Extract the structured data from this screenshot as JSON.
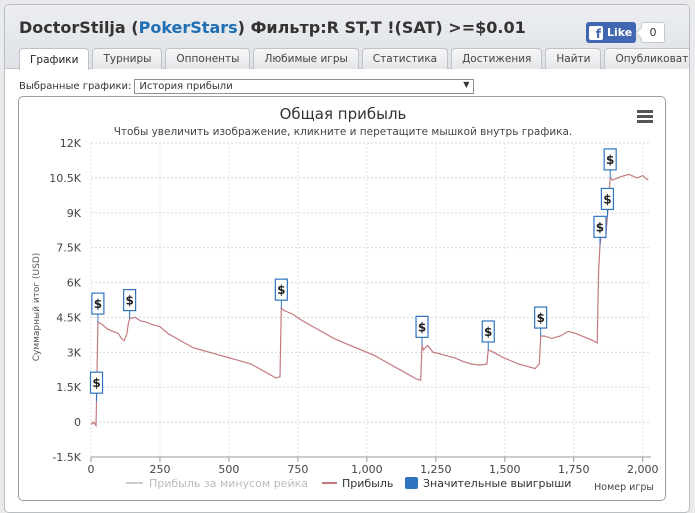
{
  "window": {
    "player": "DoctorStilja",
    "site": "PokerStars",
    "filter": "Фильтр:R ST,T !(SAT) >=$0.01",
    "fb_like": "Like",
    "fb_count": "0"
  },
  "tabs": [
    {
      "label": "Графики",
      "active": true
    },
    {
      "label": "Турниры",
      "active": false
    },
    {
      "label": "Оппоненты",
      "active": false
    },
    {
      "label": "Любимые игры",
      "active": false
    },
    {
      "label": "Статистика",
      "active": false
    },
    {
      "label": "Достижения",
      "active": false
    },
    {
      "label": "Найти",
      "active": false
    },
    {
      "label": "Опубликовать",
      "active": false
    }
  ],
  "selector": {
    "label": "Выбранные графики:",
    "value": "История прибыли"
  },
  "chart_data": {
    "type": "line",
    "title": "Общая прибыль",
    "subtitle": "Чтобы увеличить изображение, кликните и перетащите мышкой внутрь графика.",
    "ylabel": "Суммарный итог (USD)",
    "xlabel": "Номер игры",
    "xlim": [
      0,
      2030
    ],
    "ylim": [
      -1500,
      12000
    ],
    "x_ticks": [
      0,
      250,
      500,
      750,
      1000,
      1250,
      1500,
      1750,
      2000
    ],
    "x_tick_labels": [
      "0",
      "250",
      "500",
      "750",
      "1,000",
      "1,250",
      "1,500",
      "1,750",
      "2,000"
    ],
    "y_ticks": [
      -1500,
      0,
      1500,
      3000,
      4500,
      6000,
      7500,
      9000,
      10500,
      12000
    ],
    "y_tick_labels": [
      "-1.5K",
      "0",
      "1.5K",
      "3K",
      "4.5K",
      "6K",
      "7.5K",
      "9K",
      "10.5K",
      "12K"
    ],
    "grid": true,
    "legend_position": "bottom",
    "colors": {
      "profit": "#c47a7f",
      "rake_line": "#cccccc",
      "markers": "#2f74c0"
    },
    "series": [
      {
        "name": "Прибыль за минусом рейка",
        "hidden": true,
        "points": []
      },
      {
        "name": "Прибыль",
        "points": [
          [
            0,
            -100
          ],
          [
            10,
            0
          ],
          [
            18,
            -150
          ],
          [
            20,
            900
          ],
          [
            25,
            4300
          ],
          [
            40,
            4200
          ],
          [
            60,
            4000
          ],
          [
            80,
            3900
          ],
          [
            100,
            3800
          ],
          [
            110,
            3600
          ],
          [
            120,
            3500
          ],
          [
            130,
            3800
          ],
          [
            135,
            4200
          ],
          [
            140,
            4450
          ],
          [
            160,
            4500
          ],
          [
            180,
            4350
          ],
          [
            200,
            4300
          ],
          [
            220,
            4200
          ],
          [
            250,
            4100
          ],
          [
            280,
            3800
          ],
          [
            310,
            3600
          ],
          [
            340,
            3400
          ],
          [
            370,
            3200
          ],
          [
            400,
            3100
          ],
          [
            430,
            3000
          ],
          [
            460,
            2900
          ],
          [
            490,
            2800
          ],
          [
            520,
            2700
          ],
          [
            550,
            2600
          ],
          [
            580,
            2500
          ],
          [
            610,
            2300
          ],
          [
            640,
            2100
          ],
          [
            670,
            1900
          ],
          [
            685,
            1950
          ],
          [
            690,
            4900
          ],
          [
            700,
            4800
          ],
          [
            730,
            4650
          ],
          [
            760,
            4400
          ],
          [
            790,
            4200
          ],
          [
            820,
            4000
          ],
          [
            850,
            3800
          ],
          [
            880,
            3600
          ],
          [
            910,
            3450
          ],
          [
            940,
            3300
          ],
          [
            970,
            3150
          ],
          [
            1000,
            3000
          ],
          [
            1030,
            2850
          ],
          [
            1060,
            2650
          ],
          [
            1090,
            2450
          ],
          [
            1120,
            2250
          ],
          [
            1150,
            2050
          ],
          [
            1180,
            1850
          ],
          [
            1195,
            1800
          ],
          [
            1200,
            3300
          ],
          [
            1205,
            3100
          ],
          [
            1220,
            3300
          ],
          [
            1240,
            3000
          ],
          [
            1260,
            2950
          ],
          [
            1290,
            2850
          ],
          [
            1320,
            2750
          ],
          [
            1350,
            2600
          ],
          [
            1380,
            2500
          ],
          [
            1410,
            2450
          ],
          [
            1435,
            2500
          ],
          [
            1440,
            3100
          ],
          [
            1460,
            3000
          ],
          [
            1490,
            2800
          ],
          [
            1520,
            2650
          ],
          [
            1550,
            2500
          ],
          [
            1580,
            2400
          ],
          [
            1610,
            2300
          ],
          [
            1625,
            2500
          ],
          [
            1630,
            3700
          ],
          [
            1645,
            3700
          ],
          [
            1670,
            3600
          ],
          [
            1700,
            3700
          ],
          [
            1730,
            3900
          ],
          [
            1760,
            3800
          ],
          [
            1790,
            3650
          ],
          [
            1820,
            3500
          ],
          [
            1835,
            3400
          ],
          [
            1840,
            6500
          ],
          [
            1845,
            7600
          ],
          [
            1855,
            8700
          ],
          [
            1865,
            7900
          ],
          [
            1872,
            8800
          ],
          [
            1882,
            10500
          ],
          [
            1890,
            10400
          ],
          [
            1920,
            10550
          ],
          [
            1950,
            10650
          ],
          [
            1980,
            10500
          ],
          [
            2000,
            10600
          ],
          [
            2020,
            10400
          ]
        ]
      }
    ],
    "markers": {
      "name": "Значительные выигрыши",
      "symbol": "$",
      "points": [
        [
          20,
          900
        ],
        [
          25,
          4300
        ],
        [
          140,
          4450
        ],
        [
          690,
          4900
        ],
        [
          1200,
          3300
        ],
        [
          1440,
          3100
        ],
        [
          1630,
          3700
        ],
        [
          1845,
          7600
        ],
        [
          1872,
          8800
        ],
        [
          1882,
          10500
        ]
      ]
    }
  }
}
